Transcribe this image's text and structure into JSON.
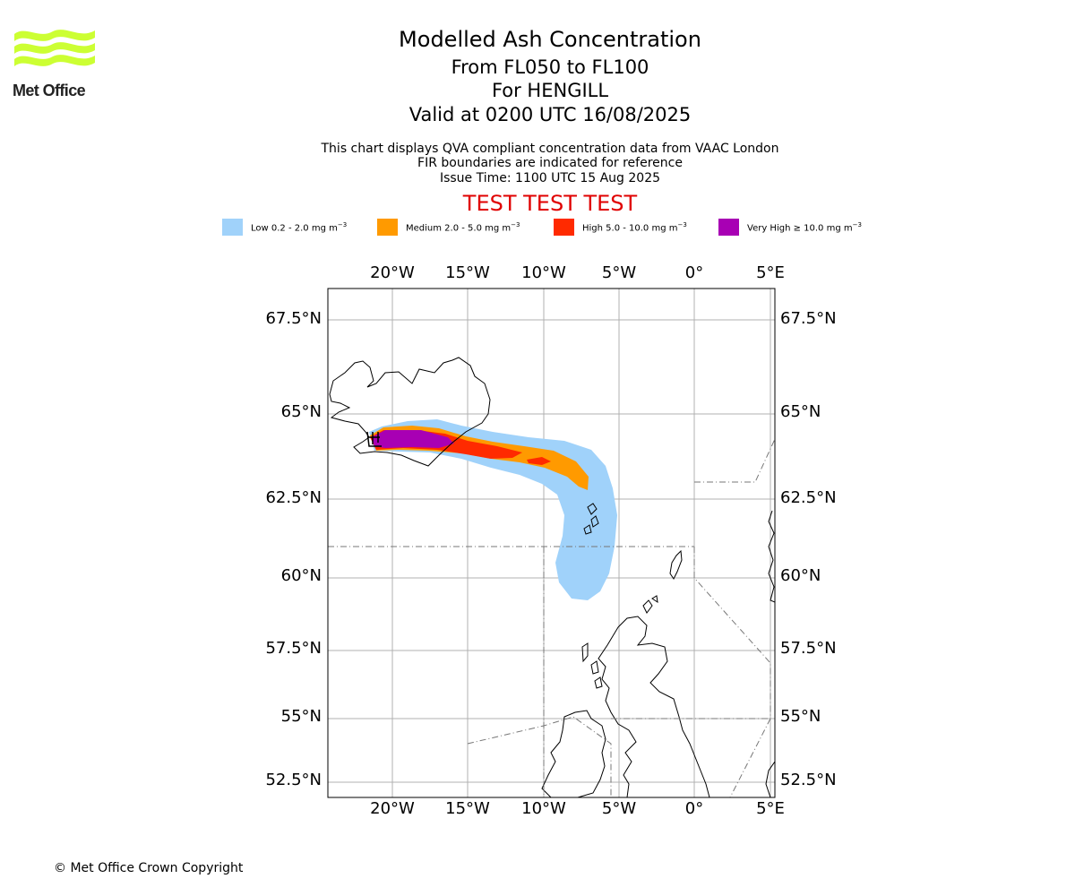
{
  "logo": {
    "text": "Met Office",
    "color": "#ccff33",
    "icon": "met-office-wave-logo"
  },
  "title": {
    "main": "Modelled Ash Concentration",
    "levels": "From FL050 to FL100",
    "location": "For HENGILL",
    "valid": "Valid at 0200 UTC 16/08/2025"
  },
  "subtitle": {
    "line1": "This chart displays QVA compliant concentration data from VAAC London",
    "line2": "FIR boundaries are indicated for reference",
    "line3": "Issue Time: 1100 UTC 15 Aug 2025"
  },
  "test_banner": "TEST TEST TEST",
  "legend": [
    {
      "prefix": "Low 0.2 - 2.0 mg m",
      "exp": "−3",
      "color": "#a0d2fa"
    },
    {
      "prefix": "Medium 2.0 - 5.0 mg m",
      "exp": "−3",
      "color": "#ff9a00"
    },
    {
      "prefix": "High 5.0 - 10.0 mg m",
      "exp": "−3",
      "color": "#ff2a00"
    },
    {
      "prefix": "Very High ≥ 10.0 mg m",
      "exp": "−3",
      "color": "#a800b4"
    }
  ],
  "map": {
    "lon_ticks": [
      "20°W",
      "15°W",
      "10°W",
      "5°W",
      "0°",
      "5°E"
    ],
    "lat_ticks": [
      "67.5°N",
      "65°N",
      "62.5°N",
      "60°N",
      "57.5°N",
      "55°N",
      "52.5°N"
    ],
    "gridlines": true,
    "fir_boundaries": true
  },
  "footer": {
    "copyright": "© Met Office Crown Copyright"
  }
}
